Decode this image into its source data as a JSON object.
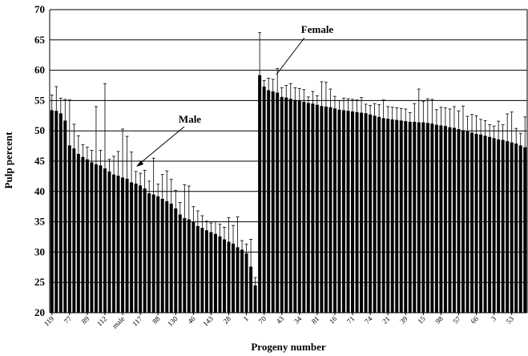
{
  "chart_data": {
    "type": "bar",
    "y_label": "Pulp percent",
    "x_label": "Progeny number",
    "annotations": [
      "Male",
      "Female"
    ],
    "categories": [
      "119",
      null,
      null,
      null,
      "77",
      null,
      null,
      null,
      "89",
      null,
      null,
      null,
      "112",
      null,
      null,
      null,
      "male",
      null,
      null,
      null,
      "117",
      null,
      null,
      null,
      "88",
      null,
      null,
      null,
      "130",
      null,
      null,
      null,
      "46",
      null,
      null,
      null,
      "143",
      null,
      null,
      null,
      "28",
      null,
      null,
      null,
      "1",
      null,
      null,
      null,
      "70",
      null,
      null,
      null,
      "43",
      null,
      null,
      null,
      "34",
      null,
      null,
      null,
      "81",
      null,
      null,
      null,
      "16",
      null,
      null,
      null,
      "71",
      null,
      null,
      null,
      "74",
      null,
      null,
      null,
      "21",
      null,
      null,
      null,
      "39",
      null,
      null,
      null,
      "15",
      null,
      null,
      null,
      "98",
      null,
      null,
      null,
      "57",
      null,
      null,
      null,
      "66",
      null,
      null,
      null,
      "3",
      null,
      null,
      null,
      "53",
      null,
      null,
      null
    ],
    "series": [
      {
        "color": "#000000",
        "values": [
          53.4,
          53.3,
          52.9,
          51.7,
          47.6,
          47.1,
          46.2,
          45.7,
          45.3,
          44.8,
          44.5,
          44.3,
          43.8,
          43.3,
          42.8,
          42.6,
          42.3,
          42.1,
          41.5,
          41.3,
          41,
          40.5,
          39.7,
          39.5,
          39.2,
          38.8,
          38.4,
          38,
          37.2,
          36.2,
          35.6,
          35.4,
          35,
          34.3,
          34,
          33.6,
          33.3,
          33,
          32.6,
          32.1,
          31.7,
          31.4,
          30.8,
          30.4,
          29.8,
          27.6,
          24.5,
          59.2,
          57.3,
          56.7,
          56.5,
          56.3,
          55.6,
          55.5,
          55.3,
          55.1,
          55,
          54.8,
          54.6,
          54.5,
          54.3,
          54.1,
          54,
          53.9,
          53.7,
          53.5,
          53.4,
          53.3,
          53.2,
          53.1,
          53,
          52.9,
          52.7,
          52.5,
          52.3,
          52.1,
          52,
          51.9,
          51.8,
          51.7,
          51.6,
          51.5,
          51.5,
          51.4,
          51.4,
          51.3,
          51.2,
          51,
          50.9,
          50.8,
          50.6,
          50.5,
          50.3,
          50.1,
          49.9,
          49.7,
          49.5,
          49.4,
          49.2,
          49,
          48.8,
          48.6,
          48.5,
          48.3,
          48.1,
          47.9,
          47.6,
          47.3
        ],
        "errors": [
          2.5,
          4,
          2.5,
          3.5,
          7.5,
          4,
          3,
          2,
          2,
          2,
          9.5,
          2.5,
          14,
          2,
          3,
          4,
          8,
          7,
          5,
          2,
          2,
          3,
          2,
          6,
          2,
          4,
          5,
          4,
          3,
          2,
          5.5,
          5.5,
          2.5,
          2.5,
          2,
          1.5,
          1.5,
          2,
          2,
          2,
          4,
          3,
          5,
          1.5,
          1.5,
          4.5,
          1.3,
          7,
          1,
          2,
          2,
          4,
          1.5,
          2,
          2.5,
          2,
          2,
          2,
          1,
          2,
          1.5,
          4,
          4,
          3,
          2,
          1.5,
          2,
          2,
          2,
          2,
          2.5,
          1.5,
          1.5,
          2,
          2,
          3,
          2,
          2,
          2,
          2,
          2,
          1.5,
          3,
          5.5,
          3.5,
          4,
          4,
          2.5,
          3,
          3,
          3,
          3.5,
          3,
          4,
          2.5,
          3,
          3,
          2.5,
          2.5,
          2,
          2,
          3,
          2.5,
          4.5,
          5,
          2.5,
          2,
          5
        ]
      }
    ],
    "ylim": [
      20,
      70
    ],
    "yticks": [
      20,
      25,
      30,
      35,
      40,
      45,
      50,
      55,
      60,
      65,
      70
    ],
    "grid": true
  }
}
